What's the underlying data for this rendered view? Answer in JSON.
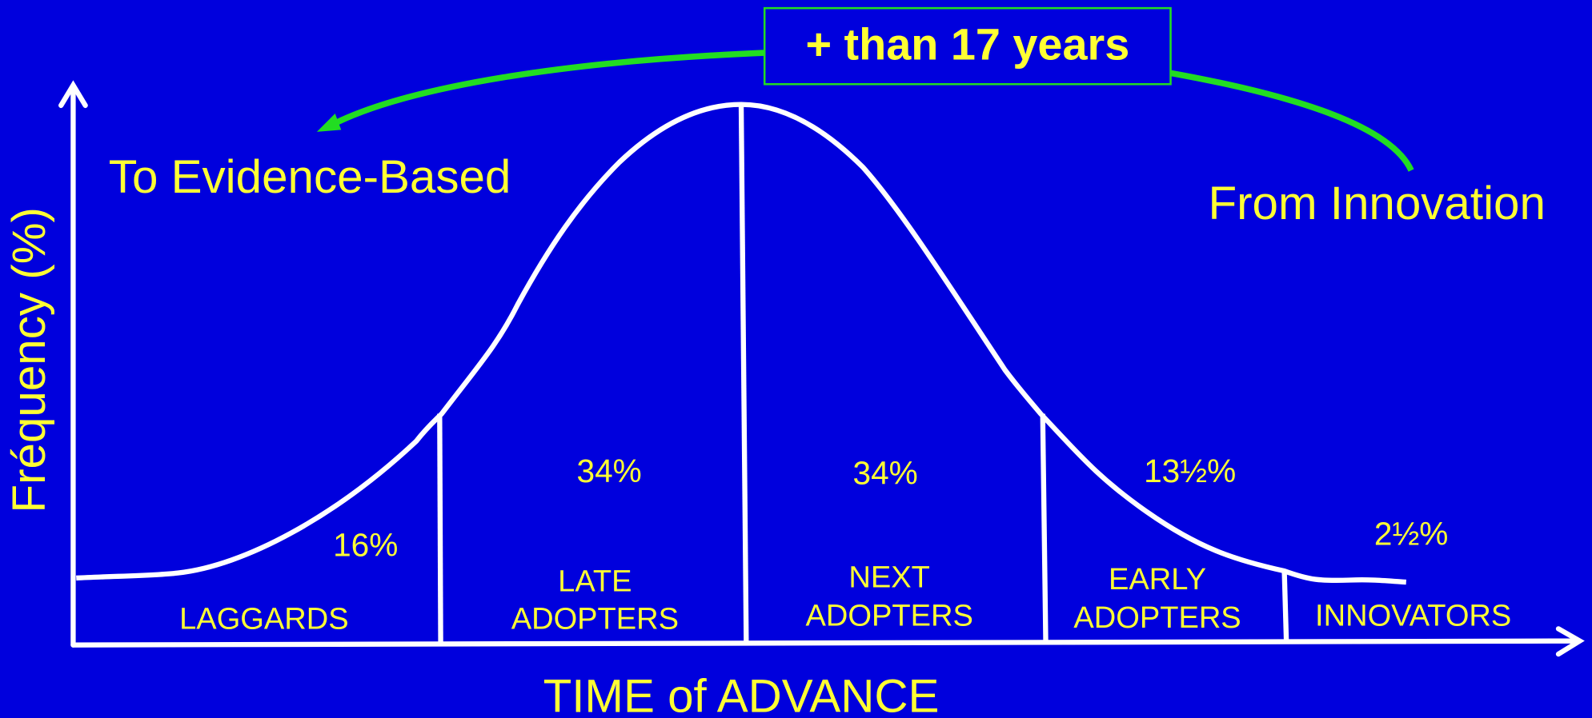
{
  "banner": "+ than 17 years",
  "left_label": "To Evidence-Based",
  "right_label": "From Innovation",
  "y_axis_label": "Fréquency (%)",
  "x_axis_label": "TIME of ADVANCE",
  "segments": [
    {
      "label": "LAGGARDS",
      "percent": "16%"
    },
    {
      "label_lines": [
        "LATE",
        "ADOPTERS"
      ],
      "percent": "34%"
    },
    {
      "label_lines": [
        "NEXT",
        "ADOPTERS"
      ],
      "percent": "34%"
    },
    {
      "label_lines": [
        "EARLY",
        "ADOPTERS"
      ],
      "percent": "13½%"
    },
    {
      "label": "INNOVATORS",
      "percent": "2½%"
    }
  ]
}
